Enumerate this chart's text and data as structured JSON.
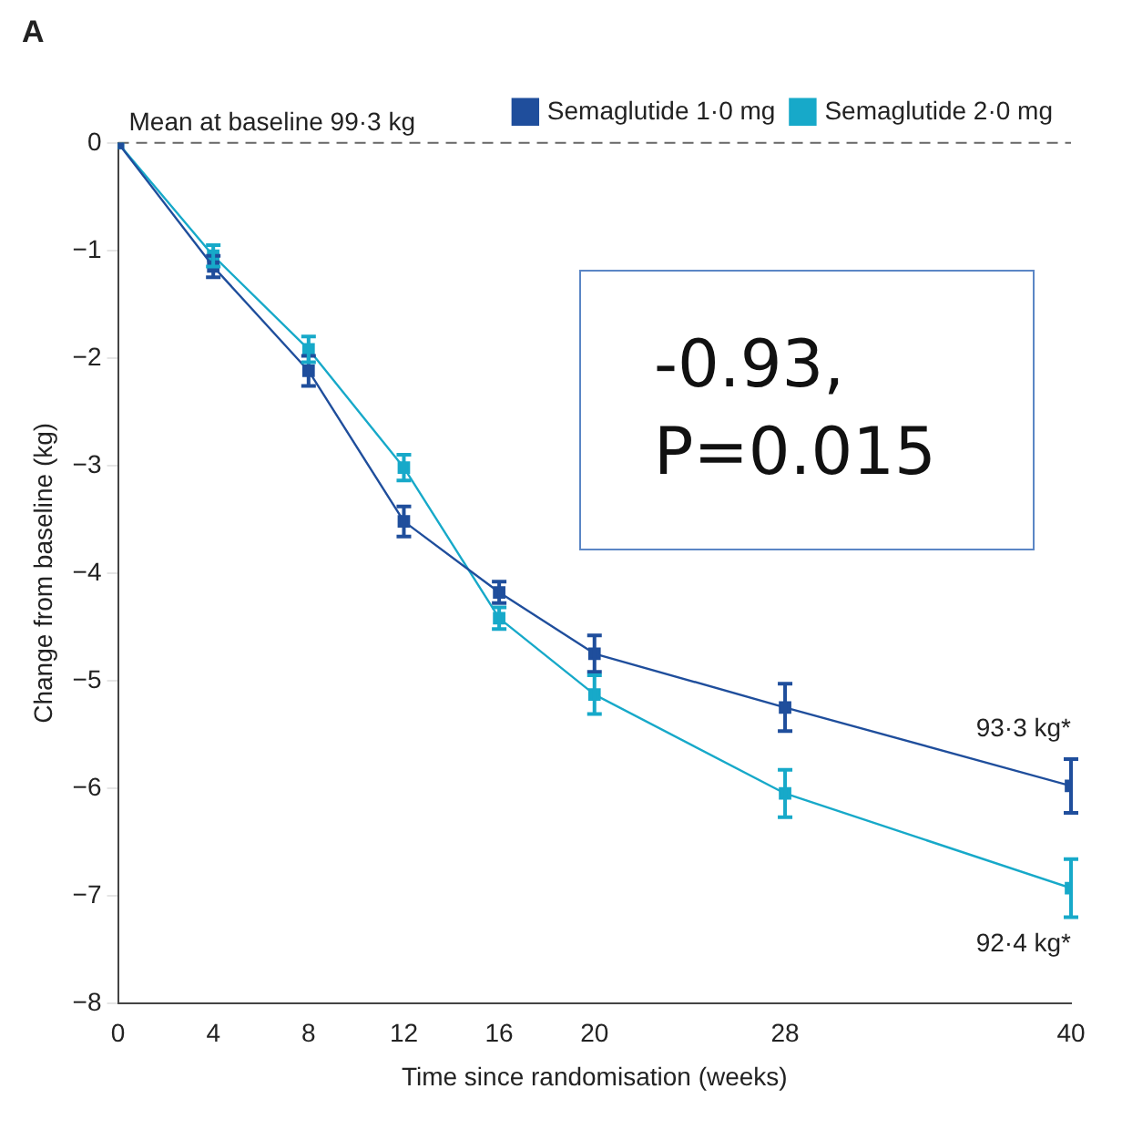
{
  "chart_data": {
    "type": "line",
    "title": "A",
    "xlabel": "Time since randomisation (weeks)",
    "ylabel": "Change from baseline (kg)",
    "x": [
      0,
      4,
      8,
      12,
      16,
      20,
      28,
      40
    ],
    "series": [
      {
        "name": "Semaglutide 1·0 mg",
        "color": "#1f4e9c",
        "values": [
          0,
          -1.15,
          -2.12,
          -3.52,
          -4.18,
          -4.75,
          -5.25,
          -5.98
        ],
        "errors": [
          null,
          0.1,
          0.14,
          0.14,
          0.1,
          0.17,
          0.22,
          0.25
        ]
      },
      {
        "name": "Semaglutide 2·0 mg",
        "color": "#17a9c9",
        "values": [
          0,
          -1.05,
          -1.92,
          -3.02,
          -4.42,
          -5.13,
          -6.05,
          -6.93
        ],
        "errors": [
          null,
          0.1,
          0.12,
          0.12,
          0.1,
          0.18,
          0.22,
          0.27
        ]
      }
    ],
    "xlim": [
      0,
      40
    ],
    "xticks": [
      0,
      4,
      8,
      12,
      16,
      20,
      28,
      40
    ],
    "ylim": [
      -8,
      0
    ],
    "yticks": [
      {
        "value": -8,
        "label": "−8"
      },
      {
        "value": -7,
        "label": "−7"
      },
      {
        "value": -6,
        "label": "−6"
      },
      {
        "value": -5,
        "label": "−5"
      },
      {
        "value": -4,
        "label": "−4"
      },
      {
        "value": -3,
        "label": "−3"
      },
      {
        "value": -2,
        "label": "−2"
      },
      {
        "value": -1,
        "label": "−1"
      },
      0
    ],
    "ref_lines": [
      {
        "axis": "y",
        "value": 0,
        "label": "Mean at baseline 99·3 kg",
        "line_style": "dashed",
        "color": "#666666"
      }
    ],
    "annotations": [
      {
        "text": "93·3 kg*",
        "x": 40,
        "y": -5.98
      },
      {
        "text": "92·4 kg*",
        "x": 40,
        "y": -6.93
      },
      "-0.93,\nP=0.015"
    ],
    "legend": "top right",
    "marker": "square",
    "grid": false,
    "line_style": "solid"
  }
}
